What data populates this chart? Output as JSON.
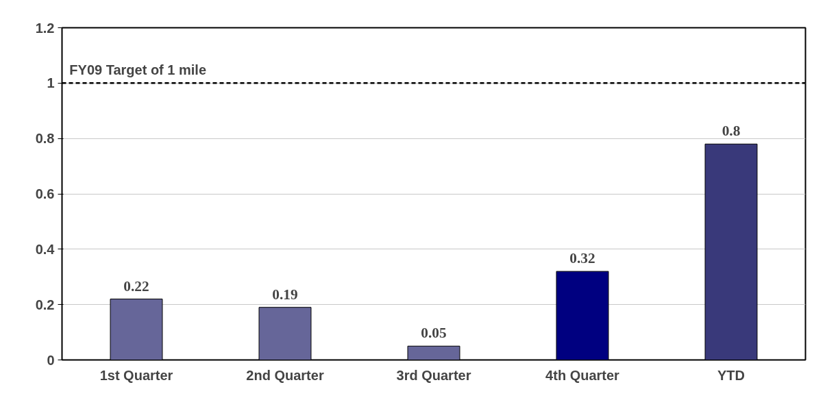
{
  "chart_data": {
    "type": "bar",
    "categories": [
      "1st Quarter",
      "2nd Quarter",
      "3rd Quarter",
      "4th Quarter",
      "YTD"
    ],
    "values": [
      0.22,
      0.19,
      0.05,
      0.32,
      0.78
    ],
    "value_labels": [
      "0.22",
      "0.19",
      "0.05",
      "0.32",
      "0.8"
    ],
    "colors": [
      "#666699",
      "#666699",
      "#666699",
      "#000080",
      "#39397a"
    ],
    "ylim": [
      0,
      1.2
    ],
    "yticks": [
      0,
      0.2,
      0.4,
      0.6,
      0.8,
      1,
      1.2
    ],
    "grid": "y",
    "ref_lines": [
      {
        "axis": "y",
        "value": 1,
        "label": "FY09 Target of 1 mile",
        "color": "#000000",
        "line_style": "dashed"
      }
    ]
  }
}
